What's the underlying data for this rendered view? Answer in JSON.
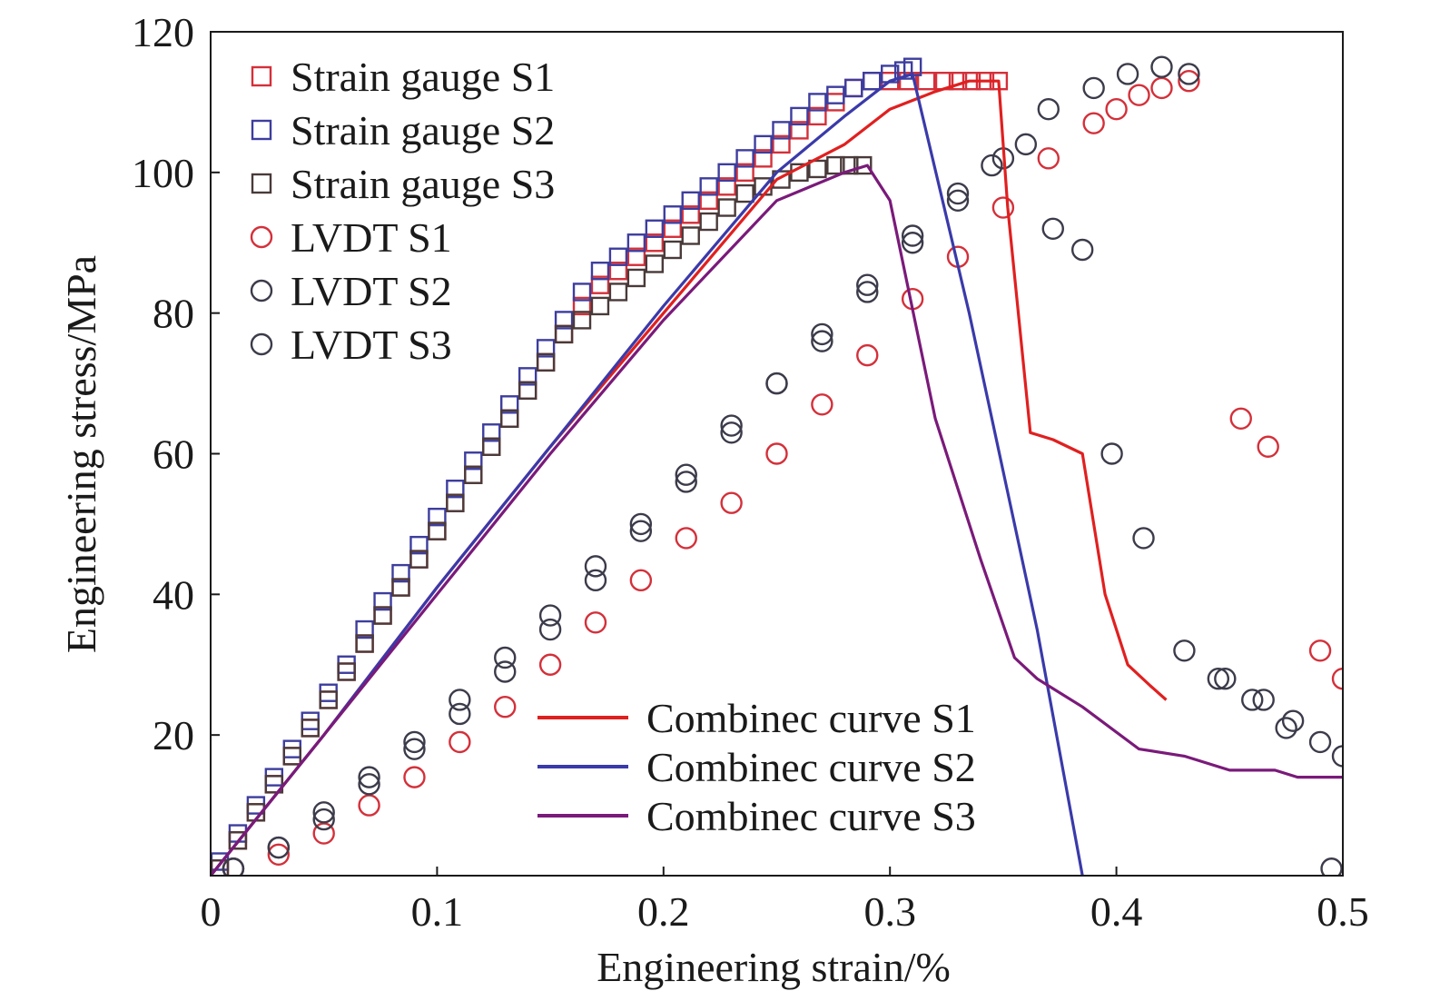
{
  "chart_data": {
    "type": "scatter",
    "xlabel": "Engineering strain/%",
    "ylabel": "Engineering stress/MPa",
    "xlim": [
      0,
      0.5
    ],
    "ylim": [
      0,
      120
    ],
    "x_ticks": [
      {
        "value": 0,
        "label": "0"
      },
      {
        "value": 0.1,
        "label": "0.1"
      },
      {
        "value": 0.2,
        "label": "0.2"
      },
      {
        "value": 0.3,
        "label": "0.3"
      },
      {
        "value": 0.4,
        "label": "0.4"
      },
      {
        "value": 0.5,
        "label": "0.5"
      }
    ],
    "y_ticks": [
      {
        "value": 20,
        "label": "20"
      },
      {
        "value": 40,
        "label": "40"
      },
      {
        "value": 60,
        "label": "60"
      },
      {
        "value": 80,
        "label": "80"
      },
      {
        "value": 100,
        "label": "100"
      },
      {
        "value": 120,
        "label": "120"
      }
    ],
    "grid": false,
    "legend_top_left": [
      {
        "label": "Strain gauge S1",
        "marker": "square",
        "color": "#d4303a"
      },
      {
        "label": "Strain gauge S2",
        "marker": "square",
        "color": "#3d3d9e"
      },
      {
        "label": "Strain gauge S3",
        "marker": "square",
        "color": "#4a3a3a"
      },
      {
        "label": "LVDT S1",
        "marker": "circle",
        "color": "#d4303a"
      },
      {
        "label": "LVDT S2",
        "marker": "circle",
        "color": "#3b3b4a"
      },
      {
        "label": "LVDT S3",
        "marker": "circle",
        "color": "#3b3b4a"
      }
    ],
    "legend_bottom_right": [
      {
        "label": "Combinec curve S1",
        "marker": "line",
        "color": "#e02020"
      },
      {
        "label": "Combinec curve S2",
        "marker": "line",
        "color": "#3a3aaa"
      },
      {
        "label": "Combinec curve S3",
        "marker": "line",
        "color": "#7a1a7a"
      }
    ],
    "series": [
      {
        "name": "Strain gauge S1",
        "kind": "square",
        "color": "#d4303a",
        "x": [
          0.004,
          0.012,
          0.02,
          0.028,
          0.036,
          0.044,
          0.052,
          0.06,
          0.068,
          0.076,
          0.084,
          0.092,
          0.1,
          0.108,
          0.116,
          0.124,
          0.132,
          0.14,
          0.148,
          0.156,
          0.164,
          0.172,
          0.18,
          0.188,
          0.196,
          0.204,
          0.212,
          0.22,
          0.228,
          0.236,
          0.244,
          0.252,
          0.26,
          0.268,
          0.276,
          0.284,
          0.292,
          0.3,
          0.308,
          0.316,
          0.324,
          0.33,
          0.336,
          0.342,
          0.348
        ],
        "y": [
          1,
          5,
          9,
          13,
          17,
          21,
          25,
          29,
          33,
          37,
          41,
          45,
          49,
          53,
          57,
          61,
          65,
          69,
          73,
          77,
          81,
          84,
          86,
          88,
          90,
          92,
          94,
          96,
          98,
          100,
          102,
          104,
          106,
          108,
          110,
          112,
          113,
          113,
          113,
          113,
          113,
          113,
          113,
          113,
          113
        ]
      },
      {
        "name": "Strain gauge S2",
        "kind": "square",
        "color": "#3d3d9e",
        "x": [
          0.004,
          0.012,
          0.02,
          0.028,
          0.036,
          0.044,
          0.052,
          0.06,
          0.068,
          0.076,
          0.084,
          0.092,
          0.1,
          0.108,
          0.116,
          0.124,
          0.132,
          0.14,
          0.148,
          0.156,
          0.164,
          0.172,
          0.18,
          0.188,
          0.196,
          0.204,
          0.212,
          0.22,
          0.228,
          0.236,
          0.244,
          0.252,
          0.26,
          0.268,
          0.276,
          0.284,
          0.292,
          0.3,
          0.306,
          0.31
        ],
        "y": [
          2,
          6,
          10,
          14,
          18,
          22,
          26,
          30,
          35,
          39,
          43,
          47,
          51,
          55,
          59,
          63,
          67,
          71,
          75,
          79,
          83,
          86,
          88,
          90,
          92,
          94,
          96,
          98,
          100,
          102,
          104,
          106,
          108,
          110,
          111,
          112,
          113,
          114,
          114.5,
          115
        ]
      },
      {
        "name": "Strain gauge S3",
        "kind": "square",
        "color": "#4a3a3a",
        "x": [
          0.004,
          0.012,
          0.02,
          0.028,
          0.036,
          0.044,
          0.052,
          0.06,
          0.068,
          0.076,
          0.084,
          0.092,
          0.1,
          0.108,
          0.116,
          0.124,
          0.132,
          0.14,
          0.148,
          0.156,
          0.164,
          0.172,
          0.18,
          0.188,
          0.196,
          0.204,
          0.212,
          0.22,
          0.228,
          0.236,
          0.244,
          0.252,
          0.26,
          0.268,
          0.276,
          0.282,
          0.288
        ],
        "y": [
          1,
          5,
          9,
          13,
          17,
          21,
          25,
          29,
          33,
          37,
          41,
          45,
          49,
          53,
          57,
          61,
          65,
          69,
          73,
          77,
          79,
          81,
          83,
          85,
          87,
          89,
          91,
          93,
          95,
          97,
          98,
          99,
          100,
          100.5,
          101,
          101,
          101
        ]
      },
      {
        "name": "LVDT S1",
        "kind": "circle",
        "color": "#d4303a",
        "x": [
          0.01,
          0.03,
          0.05,
          0.07,
          0.09,
          0.11,
          0.13,
          0.15,
          0.17,
          0.19,
          0.21,
          0.23,
          0.25,
          0.27,
          0.29,
          0.31,
          0.33,
          0.35,
          0.37,
          0.39,
          0.4,
          0.41,
          0.42,
          0.432,
          0.455,
          0.467,
          0.49,
          0.5
        ],
        "y": [
          1,
          3,
          6,
          10,
          14,
          19,
          24,
          30,
          36,
          42,
          48,
          53,
          60,
          67,
          74,
          82,
          88,
          95,
          102,
          107,
          109,
          111,
          112,
          113,
          65,
          61,
          32,
          28
        ]
      },
      {
        "name": "LVDT S2",
        "kind": "circle",
        "color": "#3b3b4a",
        "x": [
          0.01,
          0.03,
          0.05,
          0.07,
          0.09,
          0.11,
          0.13,
          0.15,
          0.17,
          0.19,
          0.21,
          0.23,
          0.25,
          0.27,
          0.29,
          0.31,
          0.33,
          0.35,
          0.37,
          0.39,
          0.405,
          0.42,
          0.432,
          0.448,
          0.465,
          0.478,
          0.49,
          0.5
        ],
        "y": [
          1,
          4,
          8,
          13,
          18,
          23,
          29,
          35,
          42,
          49,
          56,
          63,
          70,
          76,
          83,
          90,
          96,
          102,
          109,
          112,
          114,
          115,
          114,
          28,
          25,
          22,
          19,
          17
        ]
      },
      {
        "name": "LVDT S3",
        "kind": "circle",
        "color": "#3b3b4a",
        "x": [
          0.01,
          0.03,
          0.05,
          0.07,
          0.09,
          0.11,
          0.13,
          0.15,
          0.17,
          0.19,
          0.21,
          0.23,
          0.25,
          0.27,
          0.29,
          0.31,
          0.33,
          0.345,
          0.36,
          0.372,
          0.385,
          0.398,
          0.412,
          0.43,
          0.445,
          0.46,
          0.475,
          0.495
        ],
        "y": [
          1,
          4,
          9,
          14,
          19,
          25,
          31,
          37,
          44,
          50,
          57,
          64,
          70,
          77,
          84,
          91,
          97,
          101,
          104,
          92,
          89,
          60,
          48,
          32,
          28,
          25,
          21,
          1
        ]
      },
      {
        "name": "Combinec curve S1",
        "kind": "line",
        "color": "#e02020",
        "x": [
          0,
          0.05,
          0.1,
          0.15,
          0.2,
          0.25,
          0.28,
          0.3,
          0.32,
          0.335,
          0.348,
          0.352,
          0.362,
          0.372,
          0.385,
          0.395,
          0.405,
          0.415,
          0.422
        ],
        "y": [
          0,
          20,
          41,
          61,
          80,
          99,
          104,
          109,
          111.5,
          113,
          113,
          95,
          63,
          62,
          60,
          40,
          30,
          27,
          25
        ]
      },
      {
        "name": "Combinec curve S2",
        "kind": "line",
        "color": "#3a3aaa",
        "x": [
          0,
          0.05,
          0.1,
          0.15,
          0.2,
          0.25,
          0.28,
          0.3,
          0.31,
          0.335,
          0.365,
          0.385
        ],
        "y": [
          0,
          20,
          41,
          61,
          81,
          100,
          108,
          113,
          114,
          80,
          35,
          0
        ]
      },
      {
        "name": "Combinec curve S3",
        "kind": "line",
        "color": "#7a1a7a",
        "x": [
          0,
          0.05,
          0.1,
          0.15,
          0.2,
          0.25,
          0.28,
          0.29,
          0.3,
          0.32,
          0.34,
          0.355,
          0.365,
          0.385,
          0.41,
          0.43,
          0.45,
          0.47,
          0.48,
          0.49,
          0.5
        ],
        "y": [
          0,
          20,
          40,
          60,
          79,
          96,
          100,
          101,
          96,
          65,
          45,
          31,
          28,
          24,
          18,
          17,
          15,
          15,
          14,
          14,
          14
        ]
      }
    ]
  }
}
